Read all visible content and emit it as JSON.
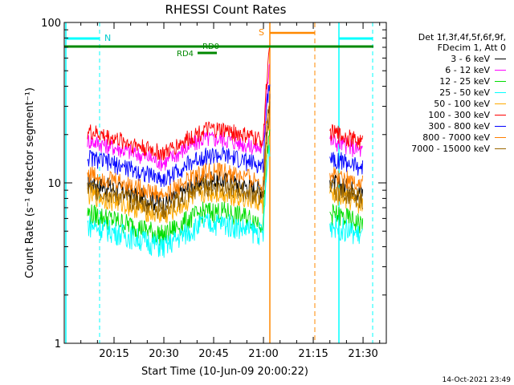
{
  "chart_data": {
    "type": "line",
    "title": "RHESSI Count Rates",
    "xlabel": "Start Time (10-Jun-09 20:00:22)",
    "ylabel": "Count Rate (s⁻¹ detector segment⁻¹)",
    "yscale": "log",
    "ylim": [
      1,
      100
    ],
    "xlim_minutes": [
      0,
      97
    ],
    "x_ticks": [
      {
        "minute": 15,
        "label": "20:15"
      },
      {
        "minute": 30,
        "label": "20:30"
      },
      {
        "minute": 45,
        "label": "20:45"
      },
      {
        "minute": 60,
        "label": "21:00"
      },
      {
        "minute": 75,
        "label": "21:15"
      },
      {
        "minute": 90,
        "label": "21:30"
      }
    ],
    "y_ticks": [
      {
        "value": 1,
        "label": "1"
      },
      {
        "value": 10,
        "label": "10"
      },
      {
        "value": 100,
        "label": "100"
      }
    ],
    "legend_header": [
      "Det 1f,3f,4f,5f,6f,9f,",
      "FDecim 1, Att 0"
    ],
    "legend_position": "right",
    "series": [
      {
        "name": "3 - 6 keV",
        "color": "#000000",
        "level": 10.2
      },
      {
        "name": "6 - 12 keV",
        "color": "#ff00ff",
        "level": 18.5
      },
      {
        "name": "12 - 25 keV",
        "color": "#00dd00",
        "level": 6.5
      },
      {
        "name": "25 - 50 keV",
        "color": "#00ffff",
        "level": 5.5
      },
      {
        "name": "50 - 100 keV",
        "color": "#ffaa00",
        "level": 8.5
      },
      {
        "name": "100 - 300 keV",
        "color": "#ff0000",
        "level": 21.0
      },
      {
        "name": "300 - 800 keV",
        "color": "#0000ff",
        "level": 14.5
      },
      {
        "name": "800 - 7000 keV",
        "color": "#ff7f00",
        "level": 11.5
      },
      {
        "name": "7000 - 15000 keV",
        "color": "#996600",
        "level": 9.3
      }
    ],
    "data_segments": [
      {
        "start_minute": 7,
        "end_minute": 62
      },
      {
        "start_minute": 80,
        "end_minute": 90
      }
    ],
    "annotations": {
      "night_label": "N",
      "saa_label": "S",
      "rd0_label": "RD0",
      "rd4_label": "RD4"
    },
    "footer_date": "14-Oct-2021 23:49"
  }
}
